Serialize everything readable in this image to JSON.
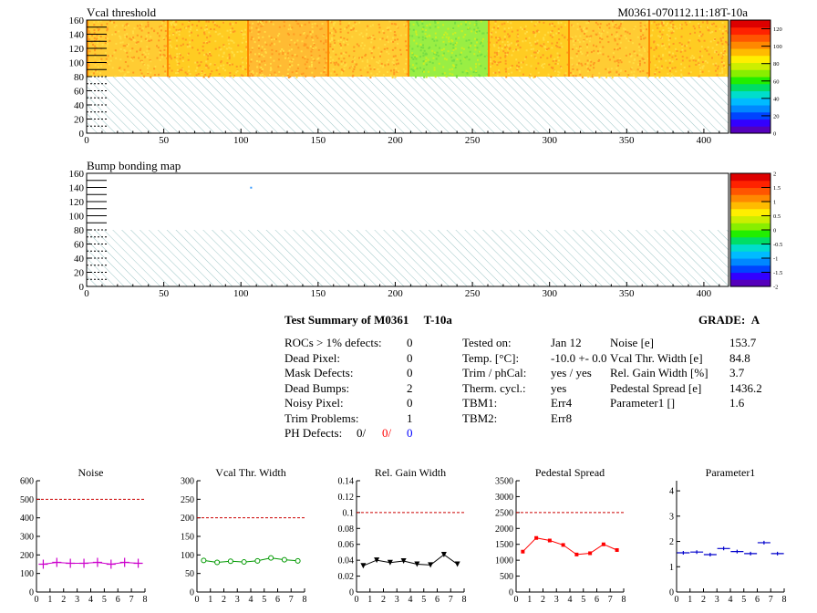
{
  "top_title": "M0361-070112.11:18T-10a",
  "maps": [
    {
      "title": "Vcal threshold",
      "x_ticks": [
        "0",
        "50",
        "100",
        "150",
        "200",
        "250",
        "300",
        "350",
        "400"
      ],
      "y_ticks": [
        "0",
        "20",
        "40",
        "60",
        "80",
        "100",
        "120",
        "140",
        "160"
      ],
      "z_ticks": [
        "0",
        "20",
        "40",
        "60",
        "80",
        "100",
        "120"
      ]
    },
    {
      "title": "Bump bonding map",
      "x_ticks": [
        "0",
        "50",
        "100",
        "150",
        "200",
        "250",
        "300",
        "350",
        "400"
      ],
      "y_ticks": [
        "0",
        "20",
        "40",
        "60",
        "80",
        "100",
        "120",
        "140",
        "160"
      ],
      "z_ticks": [
        "-2",
        "-1.5",
        "-1",
        "-0.5",
        "0",
        "0.5",
        "1",
        "1.5",
        "2"
      ]
    }
  ],
  "summary": {
    "title": "Test Summary of M0361",
    "temp_tag": "T-10a",
    "grade_label": "GRADE:",
    "grade": "A",
    "left": [
      {
        "label": "ROCs > 1% defects:",
        "value": "0"
      },
      {
        "label": "Dead Pixel:",
        "value": "0"
      },
      {
        "label": "Mask Defects:",
        "value": "0"
      },
      {
        "label": "Dead Bumps:",
        "value": "2"
      },
      {
        "label": "Noisy Pixel:",
        "value": "0"
      },
      {
        "label": "Trim Problems:",
        "value": "1"
      }
    ],
    "ph_defects_label": "PH Defects:",
    "ph_defects": [
      "0/",
      "0/",
      "0"
    ],
    "middle": [
      {
        "label": "Tested on:",
        "value": "Jan 12"
      },
      {
        "label": "Temp. [°C]:",
        "value": "-10.0 +- 0.0"
      },
      {
        "label": "Trim / phCal:",
        "value": "yes / yes"
      },
      {
        "label": "Therm. cycl.:",
        "value": "yes"
      },
      {
        "label": "TBM1:",
        "value": "Err4"
      },
      {
        "label": "TBM2:",
        "value": "Err8"
      }
    ],
    "right": [
      {
        "label": "Noise [e]",
        "value": "153.7"
      },
      {
        "label": "Vcal Thr. Width [e]",
        "value": "84.8"
      },
      {
        "label": "Rel. Gain Width [%]",
        "value": "3.7"
      },
      {
        "label": "Pedestal Spread [e]",
        "value": "1436.2"
      },
      {
        "label": "Parameter1 []",
        "value": "1.6"
      }
    ]
  },
  "chart_data": [
    {
      "type": "line",
      "title": "Noise",
      "color": "#cc00cc",
      "marker": "plus",
      "x": [
        0.5,
        1.5,
        2.5,
        3.5,
        4.5,
        5.5,
        6.5,
        7.5
      ],
      "values": [
        150,
        160,
        155,
        155,
        160,
        150,
        160,
        155
      ],
      "xlim": [
        0,
        8
      ],
      "ylim": [
        0,
        600
      ],
      "ref_line": 500,
      "x_ticks": [
        "0",
        "1",
        "2",
        "3",
        "4",
        "5",
        "6",
        "7",
        "8"
      ],
      "y_ticks": [
        "0",
        "100",
        "200",
        "300",
        "400",
        "500",
        "600"
      ]
    },
    {
      "type": "line",
      "title": "Vcal Thr. Width",
      "color": "#009900",
      "marker": "circle",
      "x": [
        0.5,
        1.5,
        2.5,
        3.5,
        4.5,
        5.5,
        6.5,
        7.5
      ],
      "values": [
        85,
        80,
        83,
        81,
        84,
        92,
        87,
        84
      ],
      "xlim": [
        0,
        8
      ],
      "ylim": [
        0,
        300
      ],
      "ref_line": 200,
      "x_ticks": [
        "0",
        "1",
        "2",
        "3",
        "4",
        "5",
        "6",
        "7",
        "8"
      ],
      "y_ticks": [
        "0",
        "50",
        "100",
        "150",
        "200",
        "250",
        "300"
      ]
    },
    {
      "type": "line",
      "title": "Rel. Gain Width",
      "color": "#000000",
      "marker": "triangle-down",
      "x": [
        0.5,
        1.5,
        2.5,
        3.5,
        4.5,
        5.5,
        6.5,
        7.5
      ],
      "values": [
        0.033,
        0.04,
        0.037,
        0.039,
        0.035,
        0.034,
        0.047,
        0.035
      ],
      "xlim": [
        0,
        8
      ],
      "ylim": [
        0,
        0.14
      ],
      "ref_line": 0.1,
      "x_ticks": [
        "0",
        "1",
        "2",
        "3",
        "4",
        "5",
        "6",
        "7",
        "8"
      ],
      "y_ticks": [
        "0",
        "0.02",
        "0.04",
        "0.06",
        "0.08",
        "0.1",
        "0.12",
        "0.14"
      ]
    },
    {
      "type": "line",
      "title": "Pedestal Spread",
      "color": "#ff0000",
      "marker": "square",
      "x": [
        0.5,
        1.5,
        2.5,
        3.5,
        4.5,
        5.5,
        6.5,
        7.5
      ],
      "values": [
        1270,
        1700,
        1620,
        1480,
        1180,
        1220,
        1500,
        1320
      ],
      "xlim": [
        0,
        8
      ],
      "ylim": [
        0,
        3500
      ],
      "ref_line": 2500,
      "x_ticks": [
        "0",
        "1",
        "2",
        "3",
        "4",
        "5",
        "6",
        "7",
        "8"
      ],
      "y_ticks": [
        "0",
        "500",
        "1000",
        "1500",
        "2000",
        "2500",
        "3000",
        "3500"
      ]
    },
    {
      "type": "scatter",
      "title": "Parameter1",
      "color": "#0000cc",
      "marker": "hbar",
      "x": [
        0.5,
        1.5,
        2.5,
        3.5,
        4.5,
        5.5,
        6.5,
        7.5
      ],
      "values": [
        1.55,
        1.58,
        1.48,
        1.72,
        1.6,
        1.52,
        1.95,
        1.52
      ],
      "xlim": [
        0,
        8
      ],
      "ylim": [
        0,
        4.4
      ],
      "x_ticks": [
        "0",
        "1",
        "2",
        "3",
        "4",
        "5",
        "6",
        "7",
        "8"
      ],
      "y_ticks": [
        "0",
        "1",
        "2",
        "3",
        "4"
      ]
    }
  ]
}
